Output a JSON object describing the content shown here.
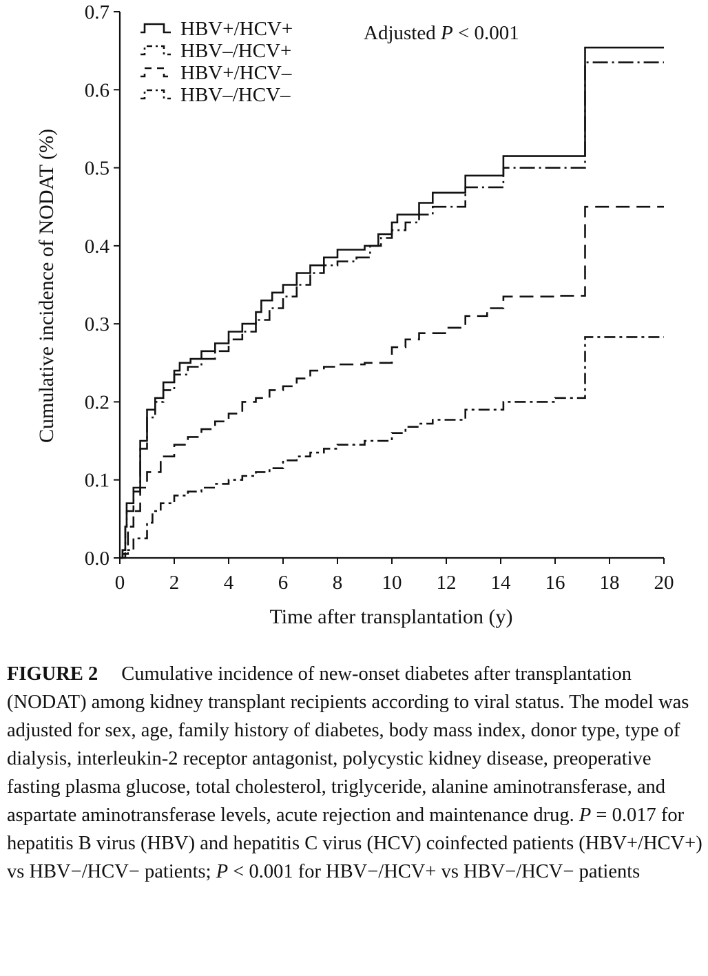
{
  "chart_data": {
    "type": "line",
    "title": "",
    "xlabel": "Time after transplantation (y)",
    "ylabel": "Cumulative incidence of NODAT (%)",
    "xlim": [
      0,
      20
    ],
    "ylim": [
      0,
      0.7
    ],
    "x_ticks": [
      "0",
      "2",
      "4",
      "6",
      "8",
      "10",
      "12",
      "14",
      "16",
      "18",
      "20"
    ],
    "y_ticks": [
      "0.0",
      "0.1",
      "0.2",
      "0.3",
      "0.4",
      "0.5",
      "0.6",
      "0.7"
    ],
    "grid": false,
    "legend_position": "top-left",
    "annotation": {
      "prefix": "Adjusted ",
      "p": "P",
      "suffix": " < 0.001"
    },
    "series": [
      {
        "name": "HBV+/HCV+",
        "style": "solid",
        "points": [
          [
            0,
            0
          ],
          [
            0.1,
            0.01
          ],
          [
            0.2,
            0.04
          ],
          [
            0.25,
            0.07
          ],
          [
            0.5,
            0.09
          ],
          [
            0.75,
            0.15
          ],
          [
            1.0,
            0.19
          ],
          [
            1.3,
            0.205
          ],
          [
            1.6,
            0.225
          ],
          [
            2.0,
            0.24
          ],
          [
            2.2,
            0.25
          ],
          [
            2.6,
            0.255
          ],
          [
            3.0,
            0.265
          ],
          [
            3.5,
            0.275
          ],
          [
            4.0,
            0.29
          ],
          [
            4.5,
            0.3
          ],
          [
            5.0,
            0.315
          ],
          [
            5.2,
            0.33
          ],
          [
            5.6,
            0.34
          ],
          [
            6.0,
            0.35
          ],
          [
            6.5,
            0.365
          ],
          [
            7.0,
            0.375
          ],
          [
            7.5,
            0.385
          ],
          [
            8.0,
            0.395
          ],
          [
            9.0,
            0.4
          ],
          [
            9.5,
            0.415
          ],
          [
            10.0,
            0.43
          ],
          [
            10.2,
            0.44
          ],
          [
            11.0,
            0.455
          ],
          [
            11.5,
            0.468
          ],
          [
            12.7,
            0.49
          ],
          [
            14.1,
            0.515
          ],
          [
            17.1,
            0.515
          ],
          [
            17.1,
            0.654
          ],
          [
            20,
            0.654
          ]
        ]
      },
      {
        "name": "HBV–/HCV+",
        "style": "dash-dot",
        "points": [
          [
            0,
            0
          ],
          [
            0.1,
            0.01
          ],
          [
            0.2,
            0.04
          ],
          [
            0.25,
            0.06
          ],
          [
            0.5,
            0.085
          ],
          [
            0.75,
            0.14
          ],
          [
            1.0,
            0.18
          ],
          [
            1.3,
            0.2
          ],
          [
            1.6,
            0.215
          ],
          [
            2.0,
            0.235
          ],
          [
            2.5,
            0.245
          ],
          [
            3.0,
            0.255
          ],
          [
            3.5,
            0.265
          ],
          [
            4.0,
            0.28
          ],
          [
            4.5,
            0.29
          ],
          [
            5.0,
            0.305
          ],
          [
            5.5,
            0.32
          ],
          [
            6.0,
            0.335
          ],
          [
            6.5,
            0.35
          ],
          [
            7.0,
            0.365
          ],
          [
            7.5,
            0.375
          ],
          [
            8.0,
            0.38
          ],
          [
            8.7,
            0.385
          ],
          [
            9.2,
            0.4
          ],
          [
            9.6,
            0.41
          ],
          [
            10.0,
            0.42
          ],
          [
            10.5,
            0.43
          ],
          [
            11.0,
            0.44
          ],
          [
            11.5,
            0.45
          ],
          [
            12.7,
            0.475
          ],
          [
            14.1,
            0.5
          ],
          [
            17.1,
            0.505
          ],
          [
            17.1,
            0.635
          ],
          [
            20,
            0.635
          ]
        ]
      },
      {
        "name": "HBV+/HCV–",
        "style": "dashed",
        "points": [
          [
            0,
            0
          ],
          [
            0.1,
            0.005
          ],
          [
            0.3,
            0.04
          ],
          [
            0.5,
            0.06
          ],
          [
            0.75,
            0.09
          ],
          [
            1.0,
            0.11
          ],
          [
            1.5,
            0.13
          ],
          [
            2.0,
            0.145
          ],
          [
            2.5,
            0.155
          ],
          [
            3.0,
            0.165
          ],
          [
            3.5,
            0.175
          ],
          [
            4.0,
            0.185
          ],
          [
            4.5,
            0.2
          ],
          [
            5.0,
            0.205
          ],
          [
            5.5,
            0.215
          ],
          [
            6.0,
            0.22
          ],
          [
            6.5,
            0.23
          ],
          [
            7.0,
            0.24
          ],
          [
            7.5,
            0.245
          ],
          [
            8.0,
            0.248
          ],
          [
            9.0,
            0.25
          ],
          [
            10.0,
            0.27
          ],
          [
            10.5,
            0.28
          ],
          [
            11.0,
            0.288
          ],
          [
            12.0,
            0.295
          ],
          [
            12.7,
            0.31
          ],
          [
            13.5,
            0.32
          ],
          [
            14.1,
            0.335
          ],
          [
            16.0,
            0.336
          ],
          [
            17.1,
            0.336
          ],
          [
            17.1,
            0.45
          ],
          [
            20,
            0.45
          ]
        ]
      },
      {
        "name": "HBV–/HCV–",
        "style": "dash-dot-dot",
        "points": [
          [
            0,
            0
          ],
          [
            0.2,
            0.01
          ],
          [
            0.5,
            0.025
          ],
          [
            1.0,
            0.045
          ],
          [
            1.2,
            0.06
          ],
          [
            1.5,
            0.07
          ],
          [
            2.0,
            0.08
          ],
          [
            2.5,
            0.085
          ],
          [
            3.0,
            0.09
          ],
          [
            3.5,
            0.095
          ],
          [
            4.0,
            0.1
          ],
          [
            4.5,
            0.105
          ],
          [
            5.0,
            0.11
          ],
          [
            5.5,
            0.115
          ],
          [
            6.0,
            0.125
          ],
          [
            6.5,
            0.13
          ],
          [
            7.0,
            0.135
          ],
          [
            7.5,
            0.14
          ],
          [
            8.0,
            0.145
          ],
          [
            9.0,
            0.15
          ],
          [
            10.0,
            0.16
          ],
          [
            10.5,
            0.168
          ],
          [
            11.0,
            0.172
          ],
          [
            11.5,
            0.177
          ],
          [
            12.7,
            0.19
          ],
          [
            14.1,
            0.2
          ],
          [
            16.0,
            0.205
          ],
          [
            17.1,
            0.205
          ],
          [
            17.1,
            0.283
          ],
          [
            20,
            0.283
          ]
        ]
      }
    ]
  },
  "caption": {
    "label": "FIGURE 2",
    "text_1": "Cumulative incidence of new-onset diabetes after transplantation (NODAT) among kidney transplant recipients according to viral status. The model was adjusted for sex, age, family history of diabetes, body mass index, donor type, type of dialysis, interleukin-2 receptor antagonist, polycystic kidney disease, preoperative fasting plasma glucose, total cholesterol, triglyceride, alanine aminotransferase, and aspartate aminotransferase levels, acute rejection and maintenance drug. ",
    "p1": "P",
    "text_2": " = 0.017 for hepatitis B virus (HBV) and hepatitis C virus (HCV) coinfected patients (HBV+/HCV+) vs HBV−/HCV− patients; ",
    "p2": "P",
    "text_3": " < 0.001 for HBV−/HCV+ vs HBV−/HCV− patients"
  }
}
